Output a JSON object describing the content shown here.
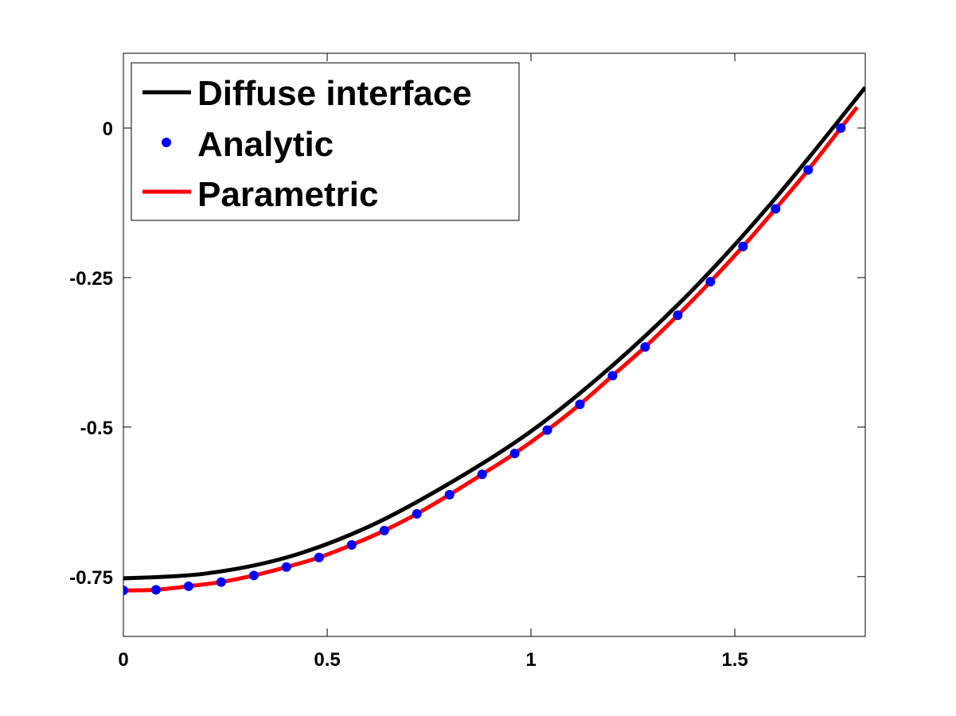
{
  "chart_data": {
    "type": "line",
    "title": "",
    "xlabel": "",
    "ylabel": "",
    "xlim": [
      0,
      1.82
    ],
    "ylim": [
      -0.85,
      0.125
    ],
    "grid": false,
    "legend_position": "top-left",
    "x_ticks": [
      {
        "value": 0,
        "label": "0"
      },
      {
        "value": 0.5,
        "label": "0.5"
      },
      {
        "value": 1,
        "label": "1"
      },
      {
        "value": 1.5,
        "label": "1.5"
      }
    ],
    "y_ticks": [
      {
        "value": 0,
        "label": "0"
      },
      {
        "value": -0.25,
        "label": "-0.25"
      },
      {
        "value": -0.5,
        "label": "-0.5"
      },
      {
        "value": -0.75,
        "label": "-0.75"
      }
    ],
    "series": [
      {
        "name": "Diffuse interface",
        "style": "line",
        "color": "#000000",
        "x": [
          0,
          0.2,
          0.4,
          0.6,
          0.8,
          1.0,
          1.2,
          1.4,
          1.6,
          1.82
        ],
        "y": [
          -0.753,
          -0.745,
          -0.718,
          -0.667,
          -0.594,
          -0.507,
          -0.397,
          -0.268,
          -0.117,
          0.068
        ]
      },
      {
        "name": "Analytic",
        "style": "markers",
        "color": "#0000ff",
        "x": [
          0,
          0.08,
          0.16,
          0.24,
          0.32,
          0.4,
          0.48,
          0.56,
          0.64,
          0.72,
          0.8,
          0.88,
          0.96,
          1.04,
          1.12,
          1.2,
          1.28,
          1.36,
          1.44,
          1.52,
          1.6,
          1.68,
          1.76
        ],
        "y": [
          -0.773,
          -0.772,
          -0.766,
          -0.759,
          -0.748,
          -0.734,
          -0.718,
          -0.697,
          -0.673,
          -0.645,
          -0.613,
          -0.579,
          -0.544,
          -0.505,
          -0.462,
          -0.414,
          -0.366,
          -0.313,
          -0.257,
          -0.198,
          -0.135,
          -0.07,
          0.0
        ]
      },
      {
        "name": "Parametric",
        "style": "line",
        "color": "#ff0000",
        "x": [
          0,
          0.08,
          0.16,
          0.24,
          0.32,
          0.4,
          0.48,
          0.56,
          0.64,
          0.72,
          0.8,
          0.88,
          0.96,
          1.04,
          1.12,
          1.2,
          1.28,
          1.36,
          1.44,
          1.52,
          1.6,
          1.68,
          1.76,
          1.8
        ],
        "y": [
          -0.773,
          -0.772,
          -0.766,
          -0.759,
          -0.748,
          -0.734,
          -0.718,
          -0.697,
          -0.673,
          -0.645,
          -0.613,
          -0.579,
          -0.544,
          -0.505,
          -0.462,
          -0.414,
          -0.366,
          -0.313,
          -0.257,
          -0.198,
          -0.135,
          -0.07,
          0.0,
          0.035
        ]
      }
    ]
  }
}
